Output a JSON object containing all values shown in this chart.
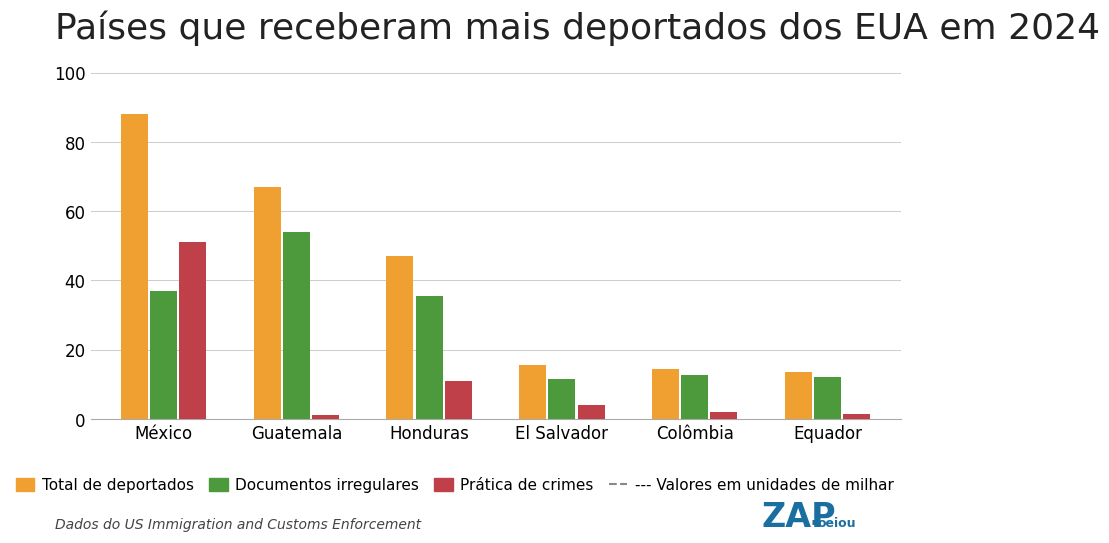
{
  "title": "Países que receberam mais deportados dos EUA em 2024",
  "categories": [
    "México",
    "Guatemala",
    "Honduras",
    "El Salvador",
    "Colômbia",
    "Equador"
  ],
  "series": {
    "Total de deportados": [
      88,
      67,
      47,
      15.5,
      14.5,
      13.5
    ],
    "Documentos irregulares": [
      37,
      54,
      35.5,
      11.5,
      12.5,
      12
    ],
    "Prática de crimes": [
      51,
      1,
      11,
      4,
      2,
      1.5
    ]
  },
  "colors": {
    "Total de deportados": "#F0A030",
    "Documentos irregulares": "#4C9A3C",
    "Prática de crimes": "#C0404A"
  },
  "ylim": [
    0,
    100
  ],
  "yticks": [
    0,
    20,
    40,
    60,
    80,
    100
  ],
  "footnote": "Dados do US Immigration and Customs Enforcement",
  "background_color": "#FFFFFF",
  "bar_width": 0.22,
  "title_fontsize": 26,
  "tick_fontsize": 12,
  "legend_fontsize": 11,
  "footnote_fontsize": 10,
  "zap_color": "#1A6FA0"
}
